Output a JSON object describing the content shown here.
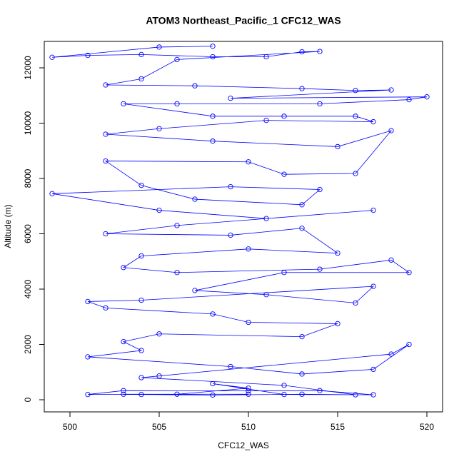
{
  "chart_data": {
    "type": "line",
    "title": "ATOM3 Northeast_Pacific_1 CFC12_WAS",
    "x_label": "CFC12_WAS",
    "y_label": "Altitude (m)",
    "color": "#0000ff",
    "markers": "open-circle",
    "x": [
      508,
      505,
      499,
      501,
      504,
      508,
      511,
      513,
      514,
      506,
      504,
      502,
      507,
      513,
      516,
      518,
      509,
      520,
      519,
      514,
      506,
      503,
      508,
      512,
      516,
      517,
      511,
      505,
      502,
      508,
      515,
      518,
      516,
      512,
      510,
      502,
      504,
      507,
      513,
      514,
      509,
      499,
      505,
      511,
      517,
      506,
      502,
      509,
      513,
      515,
      510,
      504,
      503,
      506,
      514,
      518,
      519,
      512,
      507,
      511,
      516,
      517,
      504,
      501,
      502,
      508,
      510,
      515,
      513,
      505,
      503,
      504,
      501,
      509,
      513,
      517,
      519,
      518,
      505,
      504,
      512,
      516,
      513,
      508,
      504,
      501,
      503,
      510,
      514,
      517,
      512,
      508,
      510,
      506,
      503,
      510
    ],
    "values": [
      12780,
      12750,
      12380,
      12450,
      12480,
      12400,
      12400,
      12580,
      12590,
      12300,
      11600,
      11380,
      11350,
      11250,
      11180,
      11200,
      10900,
      10950,
      10850,
      10700,
      10700,
      10700,
      10250,
      10250,
      10250,
      10050,
      10100,
      9800,
      9600,
      9350,
      9150,
      9730,
      8180,
      8150,
      8600,
      8630,
      7750,
      7250,
      7050,
      7600,
      7700,
      7450,
      6850,
      6550,
      6850,
      6300,
      6000,
      5950,
      6200,
      5300,
      5450,
      5200,
      4780,
      4600,
      4720,
      5050,
      4600,
      4600,
      3950,
      3800,
      3500,
      4100,
      3600,
      3550,
      3320,
      3100,
      2800,
      2750,
      2280,
      2380,
      2100,
      1780,
      1550,
      1200,
      930,
      1100,
      2000,
      1650,
      860,
      800,
      520,
      180,
      200,
      170,
      190,
      190,
      330,
      320,
      330,
      180,
      190,
      580,
      420,
      200,
      200,
      200
    ],
    "xlim": [
      498.56,
      520.88
    ],
    "ylim": [
      -439,
      12955
    ],
    "xticks": [
      500,
      505,
      510,
      515,
      520
    ],
    "yticks": [
      0,
      2000,
      4000,
      6000,
      8000,
      10000,
      12000
    ]
  }
}
